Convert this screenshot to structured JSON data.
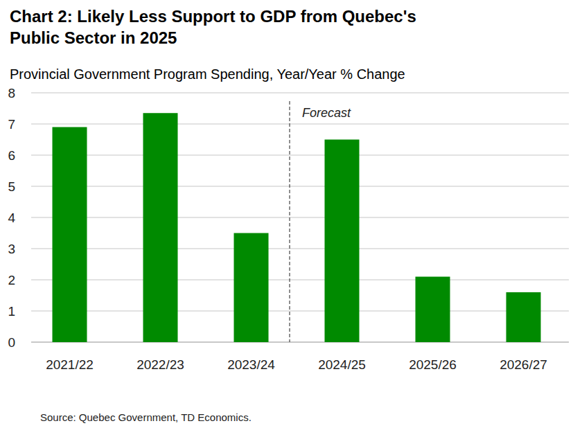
{
  "chart_data": {
    "type": "bar",
    "title": "Chart 2: Likely Less Support to GDP from Quebec's Public Sector in 2025",
    "subtitle": "Provincial Government Program Spending, Year/Year % Change",
    "categories": [
      "2021/22",
      "2022/23",
      "2023/24",
      "2024/25",
      "2025/26",
      "2026/27"
    ],
    "values": [
      6.9,
      7.35,
      3.5,
      6.5,
      2.1,
      1.6
    ],
    "color": "#008a00",
    "ylim": [
      0,
      8
    ],
    "yticks": [
      0,
      1,
      2,
      3,
      4,
      5,
      6,
      7,
      8
    ],
    "grid": true,
    "annotations": [
      {
        "text": "Forecast",
        "x": "2024/25"
      }
    ],
    "source": "Source: Quebec Government, TD Economics."
  }
}
